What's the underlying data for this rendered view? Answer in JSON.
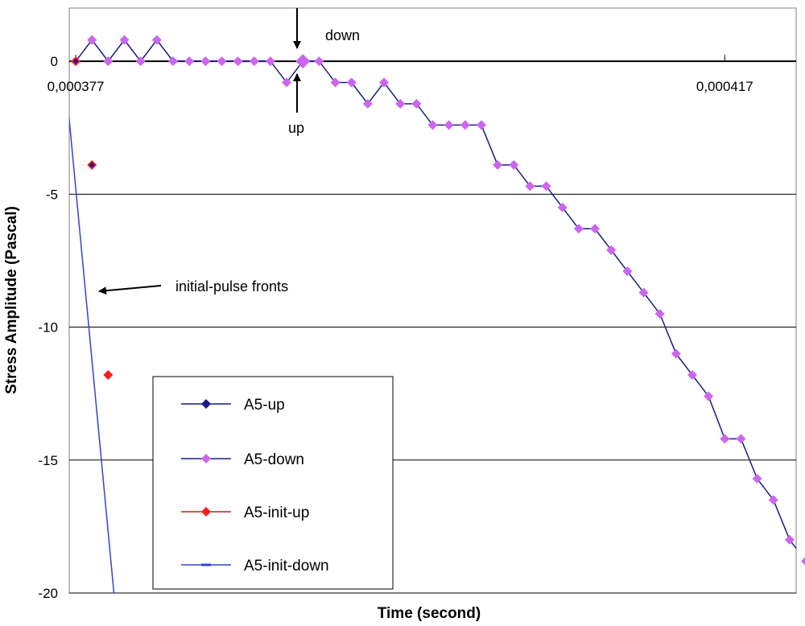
{
  "chart_data": {
    "type": "line",
    "title": "",
    "xlabel": "Time (second)",
    "ylabel": "Stress Amplitude (Pascal)",
    "ylim": [
      -20,
      2
    ],
    "y_ticks": [
      0,
      -5,
      -10,
      -15,
      -20
    ],
    "x_tick_labels": [
      {
        "x": 0.000377,
        "label": "0,000377"
      },
      {
        "x": 0.000417,
        "label": "0,000417"
      }
    ],
    "xlim": [
      0.0003766,
      0.0004214
    ],
    "grid": "horizontal",
    "legend_position": "bottom-left",
    "annotations": [
      {
        "text": "down",
        "x": 0.0003912,
        "y": 0
      },
      {
        "text": "up",
        "x": 0.0003912,
        "y": 0
      },
      {
        "text": "initial-pulse fronts",
        "x": 0.0003788,
        "y": -8.6
      }
    ],
    "series": [
      {
        "name": "A5-up",
        "color": "#1a1a8c",
        "marker": "diamond",
        "x": [
          0.000377,
          0.000378
        ],
        "y": [
          0.0,
          -3.9
        ]
      },
      {
        "name": "A5-down",
        "color": "#cc66ee",
        "line_color": "#1a1a8c",
        "marker": "diamond",
        "x": [
          0.000377,
          0.000378,
          0.000379,
          0.00038,
          0.000381,
          0.000382,
          0.000383,
          0.000384,
          0.000385,
          0.000386,
          0.000387,
          0.000388,
          0.000389,
          0.00039,
          0.000391,
          0.000392,
          0.000393,
          0.000394,
          0.000395,
          0.000396,
          0.000397,
          0.000398,
          0.000399,
          0.0004,
          0.000401,
          0.000402,
          0.000403,
          0.000404,
          0.000405,
          0.000406,
          0.000407,
          0.000408,
          0.000409,
          0.00041,
          0.000411,
          0.000412,
          0.000413,
          0.000414,
          0.000415,
          0.000416,
          0.000417,
          0.000418,
          0.000419,
          0.00042,
          0.000421
        ],
        "y": [
          0.0,
          0.8,
          0.0,
          0.8,
          0.0,
          0.8,
          0.0,
          0.0,
          0.0,
          0.0,
          0.0,
          0.0,
          0.0,
          -0.8,
          0.0,
          0.0,
          -0.8,
          -0.8,
          -1.6,
          -0.8,
          -1.6,
          -1.6,
          -2.4,
          -2.4,
          -2.4,
          -2.4,
          -3.9,
          -3.9,
          -4.7,
          -4.7,
          -5.5,
          -6.3,
          -6.3,
          -7.1,
          -7.9,
          -8.7,
          -9.5,
          -11.0,
          -11.8,
          -12.6,
          -14.2,
          -14.2,
          -15.7,
          -16.5,
          -18.0
        ]
      },
      {
        "name": "A5-init-up",
        "color": "#ff1a1a",
        "marker": "diamond",
        "x": [
          0.000377,
          0.000378,
          0.000379
        ],
        "y": [
          0.0,
          -3.9,
          -11.8
        ]
      },
      {
        "name": "A5-init-down",
        "color": "#3344cc",
        "marker": "dash",
        "x": [
          0.0003762,
          0.0003794
        ],
        "y": [
          0.4,
          -20.3
        ]
      }
    ],
    "extra_points": {
      "A5-down_tail": {
        "x": [
          0.000422
        ],
        "y": [
          -18.8
        ]
      }
    }
  }
}
